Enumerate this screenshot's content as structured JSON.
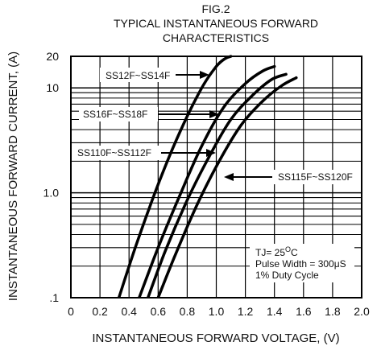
{
  "chart_data": {
    "type": "line",
    "title": [
      "FIG.2",
      "TYPICAL INSTANTANEOUS FORWARD",
      "CHARACTERISTICS"
    ],
    "xlabel": "INSTANTANEOUS FORWARD VOLTAGE, (V)",
    "ylabel": "INSTANTANEOUS FORWARD CURRENT, (A)",
    "xlim": [
      0,
      2.0
    ],
    "ylim": [
      0.1,
      20
    ],
    "yscale": "log",
    "grid": true,
    "x_ticks": [
      0,
      0.2,
      0.4,
      0.6,
      0.8,
      1.0,
      1.2,
      1.4,
      1.6,
      1.8,
      2.0
    ],
    "x_tick_labels": [
      "0",
      "0.2",
      "0.4",
      "0.6",
      "0.8",
      "1.0",
      "1.2",
      "1.4",
      "1.6",
      "1.8",
      "2.0"
    ],
    "y_tick_labels": [
      {
        "value": 20,
        "label": "20"
      },
      {
        "value": 10,
        "label": "10"
      },
      {
        "value": 1,
        "label": "1.0"
      },
      {
        "value": 0.1,
        "label": ".1"
      }
    ],
    "series": [
      {
        "name": "SS12F~SS14F",
        "x": [
          0.33,
          0.45,
          0.6,
          0.75,
          0.9,
          1.0,
          1.06,
          1.1
        ],
        "y": [
          0.1,
          0.32,
          1.2,
          3.8,
          10,
          16,
          19,
          20
        ]
      },
      {
        "name": "SS16F~SS18F",
        "x": [
          0.47,
          0.6,
          0.75,
          0.9,
          1.05,
          1.2,
          1.32,
          1.4
        ],
        "y": [
          0.1,
          0.3,
          0.95,
          2.8,
          6.5,
          11,
          14.5,
          16
        ]
      },
      {
        "name": "SS110F~SS112F",
        "x": [
          0.53,
          0.65,
          0.8,
          0.95,
          1.1,
          1.25,
          1.38,
          1.48
        ],
        "y": [
          0.1,
          0.28,
          0.85,
          2.2,
          5,
          8.5,
          12,
          13.5
        ]
      },
      {
        "name": "SS115F~SS120F",
        "x": [
          0.6,
          0.72,
          0.87,
          1.02,
          1.17,
          1.32,
          1.45,
          1.55
        ],
        "y": [
          0.1,
          0.26,
          0.78,
          2,
          4.4,
          7.5,
          10.5,
          12.5
        ]
      }
    ],
    "annotations": [
      "TJ= 25°C",
      "Pulse Width = 300μS",
      "1% Duty Cycle"
    ]
  },
  "annotation_labels": {
    "tj_prefix": "TJ= 25",
    "tj_sup": "O",
    "tj_suffix": "C",
    "pulse_width": "Pulse Width = 300μS",
    "duty_cycle": "1% Duty Cycle"
  }
}
